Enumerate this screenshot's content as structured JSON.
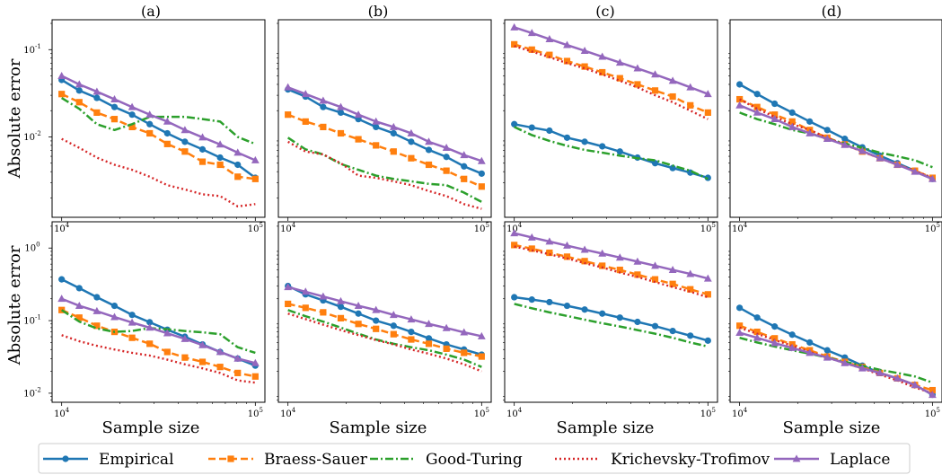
{
  "figure": {
    "panel_titles": [
      "(a)",
      "(b)",
      "(c)",
      "(d)"
    ],
    "ylabel": "Absolute error",
    "xlabel": "Sample size"
  },
  "legend": {
    "entries": [
      {
        "label": "Empirical",
        "color": "#1f77b4",
        "marker": "circle",
        "dash": "solid"
      },
      {
        "label": "Braess-Sauer",
        "color": "#ff7f0e",
        "marker": "square",
        "dash": "dashed"
      },
      {
        "label": "Good-Turing",
        "color": "#2ca02c",
        "marker": "none",
        "dash": "dashdot"
      },
      {
        "label": "Krichevsky-Trofimov",
        "color": "#d62728",
        "marker": "none",
        "dash": "dotted"
      },
      {
        "label": "Laplace",
        "color": "#9467bd",
        "marker": "triangle",
        "dash": "solid"
      }
    ],
    "placement": "bottom"
  },
  "chart_data": [
    {
      "type": "line",
      "panel": "(a)",
      "row": 1,
      "xscale": "log",
      "yscale": "log",
      "xlim": [
        10000,
        100000
      ],
      "ylim": [
        0.0012,
        0.22
      ],
      "x_ticks": [
        {
          "v": 10000,
          "b": "10",
          "e": "4"
        },
        {
          "v": 100000,
          "b": "10",
          "e": "5"
        }
      ],
      "y_ticks": [
        {
          "v": 0.01,
          "b": "10",
          "e": "-2"
        },
        {
          "v": 0.1,
          "b": "10",
          "e": "-1"
        }
      ],
      "ylabel": "Absolute error",
      "xlabel": "",
      "series": [
        {
          "name": "Empirical",
          "values": [
            0.045,
            0.034,
            0.028,
            0.022,
            0.018,
            0.014,
            0.011,
            0.0088,
            0.0072,
            0.0058,
            0.0048,
            0.0034
          ]
        },
        {
          "name": "Braess-Sauer",
          "values": [
            0.031,
            0.025,
            0.019,
            0.016,
            0.013,
            0.011,
            0.0083,
            0.0068,
            0.0052,
            0.0048,
            0.0035,
            0.0033
          ]
        },
        {
          "name": "Good-Turing",
          "values": [
            0.028,
            0.021,
            0.014,
            0.012,
            0.014,
            0.017,
            0.017,
            0.017,
            0.016,
            0.015,
            0.01,
            0.0083
          ]
        },
        {
          "name": "Krichevsky-Trofimov",
          "values": [
            0.0095,
            0.0075,
            0.0058,
            0.0048,
            0.0042,
            0.0035,
            0.0028,
            0.0025,
            0.0022,
            0.0021,
            0.0016,
            0.0017
          ]
        },
        {
          "name": "Laplace",
          "values": [
            0.05,
            0.04,
            0.033,
            0.027,
            0.022,
            0.018,
            0.015,
            0.012,
            0.0099,
            0.0082,
            0.0066,
            0.0054
          ]
        }
      ]
    },
    {
      "type": "line",
      "panel": "(b)",
      "row": 1,
      "xscale": "log",
      "yscale": "log",
      "xlim": [
        10000,
        100000
      ],
      "ylim": [
        0.0012,
        0.22
      ],
      "x_ticks": [
        {
          "v": 10000,
          "b": "10",
          "e": "4"
        },
        {
          "v": 100000,
          "b": "10",
          "e": "5"
        }
      ],
      "y_ticks": [],
      "xlabel": "",
      "series": [
        {
          "name": "Empirical",
          "values": [
            0.035,
            0.029,
            0.022,
            0.019,
            0.016,
            0.013,
            0.011,
            0.0088,
            0.0071,
            0.0059,
            0.0046,
            0.0038
          ]
        },
        {
          "name": "Braess-Sauer",
          "values": [
            0.018,
            0.015,
            0.013,
            0.011,
            0.0094,
            0.008,
            0.0068,
            0.0057,
            0.0048,
            0.0041,
            0.0033,
            0.0027
          ]
        },
        {
          "name": "Good-Turing",
          "values": [
            0.0098,
            0.0072,
            0.0063,
            0.0049,
            0.0042,
            0.0036,
            0.0033,
            0.0031,
            0.0029,
            0.0028,
            0.0023,
            0.0018
          ]
        },
        {
          "name": "Krichevsky-Trofimov",
          "values": [
            0.0088,
            0.0068,
            0.0063,
            0.005,
            0.0036,
            0.0034,
            0.0031,
            0.0028,
            0.0024,
            0.0021,
            0.0017,
            0.0015
          ]
        },
        {
          "name": "Laplace",
          "values": [
            0.037,
            0.031,
            0.026,
            0.022,
            0.018,
            0.015,
            0.013,
            0.011,
            0.0088,
            0.0075,
            0.0062,
            0.0053
          ]
        }
      ]
    },
    {
      "type": "line",
      "panel": "(c)",
      "row": 1,
      "xscale": "log",
      "yscale": "log",
      "xlim": [
        10000,
        100000
      ],
      "ylim": [
        0.0012,
        0.22
      ],
      "x_ticks": [
        {
          "v": 10000,
          "b": "10",
          "e": "4"
        },
        {
          "v": 100000,
          "b": "10",
          "e": "5"
        }
      ],
      "y_ticks": [],
      "xlabel": "",
      "series": [
        {
          "name": "Empirical",
          "values": [
            0.014,
            0.0128,
            0.0118,
            0.0098,
            0.0088,
            0.0078,
            0.0068,
            0.0058,
            0.005,
            0.0044,
            0.0039,
            0.0034
          ]
        },
        {
          "name": "Braess-Sauer",
          "values": [
            0.115,
            0.1,
            0.087,
            0.074,
            0.064,
            0.055,
            0.047,
            0.04,
            0.034,
            0.029,
            0.023,
            0.019
          ]
        },
        {
          "name": "Good-Turing",
          "values": [
            0.013,
            0.0105,
            0.009,
            0.0079,
            0.0071,
            0.0066,
            0.0061,
            0.0057,
            0.0054,
            0.0047,
            0.0041,
            0.0033
          ]
        },
        {
          "name": "Krichevsky-Trofimov",
          "values": [
            0.11,
            0.095,
            0.082,
            0.07,
            0.061,
            0.052,
            0.044,
            0.037,
            0.03,
            0.025,
            0.02,
            0.016
          ]
        },
        {
          "name": "Laplace",
          "values": [
            0.18,
            0.155,
            0.132,
            0.113,
            0.097,
            0.083,
            0.071,
            0.061,
            0.052,
            0.044,
            0.037,
            0.031
          ]
        }
      ]
    },
    {
      "type": "line",
      "panel": "(d)",
      "row": 1,
      "xscale": "log",
      "yscale": "log",
      "xlim": [
        10000,
        100000
      ],
      "ylim": [
        0.0012,
        0.22
      ],
      "x_ticks": [
        {
          "v": 10000,
          "b": "10",
          "e": "4"
        },
        {
          "v": 100000,
          "b": "10",
          "e": "5"
        }
      ],
      "y_ticks": [],
      "xlabel": "",
      "series": [
        {
          "name": "Empirical",
          "values": [
            0.04,
            0.031,
            0.024,
            0.019,
            0.015,
            0.012,
            0.0095,
            0.0076,
            0.0061,
            0.005,
            0.0041,
            0.0033
          ]
        },
        {
          "name": "Braess-Sauer",
          "values": [
            0.027,
            0.022,
            0.018,
            0.015,
            0.012,
            0.0098,
            0.0082,
            0.0068,
            0.0057,
            0.0048,
            0.0041,
            0.0034
          ]
        },
        {
          "name": "Good-Turing",
          "values": [
            0.019,
            0.016,
            0.014,
            0.012,
            0.011,
            0.0095,
            0.0084,
            0.0075,
            0.0066,
            0.006,
            0.0054,
            0.0045
          ]
        },
        {
          "name": "Krichevsky-Trofimov",
          "values": [
            0.027,
            0.021,
            0.017,
            0.014,
            0.012,
            0.0098,
            0.0081,
            0.0068,
            0.0057,
            0.0048,
            0.0041,
            0.0034
          ]
        },
        {
          "name": "Laplace",
          "values": [
            0.023,
            0.019,
            0.016,
            0.013,
            0.011,
            0.0095,
            0.0081,
            0.0069,
            0.0057,
            0.0048,
            0.004,
            0.0033
          ]
        }
      ]
    },
    {
      "type": "line",
      "panel": "(a)",
      "row": 2,
      "xscale": "log",
      "yscale": "log",
      "xlim": [
        10000,
        100000
      ],
      "ylim": [
        0.0075,
        2.3
      ],
      "x_ticks": [
        {
          "v": 10000,
          "b": "10",
          "e": "4"
        },
        {
          "v": 100000,
          "b": "10",
          "e": "5"
        }
      ],
      "y_ticks": [
        {
          "v": 0.01,
          "b": "10",
          "e": "-2"
        },
        {
          "v": 0.1,
          "b": "10",
          "e": "-1"
        },
        {
          "v": 1,
          "b": "10",
          "e": "0"
        }
      ],
      "ylabel": "Absolute error",
      "xlabel": "Sample size",
      "series": [
        {
          "name": "Empirical",
          "values": [
            0.37,
            0.28,
            0.21,
            0.16,
            0.12,
            0.095,
            0.075,
            0.06,
            0.047,
            0.037,
            0.03,
            0.024
          ]
        },
        {
          "name": "Braess-Sauer",
          "values": [
            0.14,
            0.11,
            0.085,
            0.07,
            0.058,
            0.048,
            0.037,
            0.031,
            0.027,
            0.023,
            0.019,
            0.017
          ]
        },
        {
          "name": "Good-Turing",
          "values": [
            0.14,
            0.097,
            0.078,
            0.07,
            0.072,
            0.079,
            0.076,
            0.072,
            0.069,
            0.065,
            0.043,
            0.036
          ]
        },
        {
          "name": "Krichevsky-Trofimov",
          "values": [
            0.063,
            0.052,
            0.045,
            0.04,
            0.036,
            0.033,
            0.029,
            0.025,
            0.022,
            0.019,
            0.015,
            0.014
          ]
        },
        {
          "name": "Laplace",
          "values": [
            0.2,
            0.16,
            0.135,
            0.112,
            0.094,
            0.08,
            0.067,
            0.056,
            0.046,
            0.037,
            0.03,
            0.026
          ]
        }
      ]
    },
    {
      "type": "line",
      "panel": "(b)",
      "row": 2,
      "xscale": "log",
      "yscale": "log",
      "xlim": [
        10000,
        100000
      ],
      "ylim": [
        0.0075,
        2.3
      ],
      "x_ticks": [
        {
          "v": 10000,
          "b": "10",
          "e": "4"
        },
        {
          "v": 100000,
          "b": "10",
          "e": "5"
        }
      ],
      "y_ticks": [],
      "xlabel": "Sample size",
      "series": [
        {
          "name": "Empirical",
          "values": [
            0.3,
            0.23,
            0.19,
            0.155,
            0.125,
            0.1,
            0.085,
            0.07,
            0.057,
            0.047,
            0.04,
            0.034
          ]
        },
        {
          "name": "Braess-Sauer",
          "values": [
            0.17,
            0.15,
            0.13,
            0.108,
            0.09,
            0.077,
            0.065,
            0.055,
            0.048,
            0.041,
            0.036,
            0.032
          ]
        },
        {
          "name": "Good-Turing",
          "values": [
            0.14,
            0.115,
            0.097,
            0.08,
            0.066,
            0.055,
            0.048,
            0.043,
            0.039,
            0.034,
            0.029,
            0.023
          ]
        },
        {
          "name": "Krichevsky-Trofimov",
          "values": [
            0.125,
            0.105,
            0.088,
            0.074,
            0.063,
            0.054,
            0.047,
            0.04,
            0.035,
            0.03,
            0.025,
            0.02
          ]
        },
        {
          "name": "Laplace",
          "values": [
            0.29,
            0.25,
            0.215,
            0.185,
            0.16,
            0.14,
            0.12,
            0.104,
            0.09,
            0.079,
            0.069,
            0.061
          ]
        }
      ]
    },
    {
      "type": "line",
      "panel": "(c)",
      "row": 2,
      "xscale": "log",
      "yscale": "log",
      "xlim": [
        10000,
        100000
      ],
      "ylim": [
        0.0075,
        2.3
      ],
      "x_ticks": [
        {
          "v": 10000,
          "b": "10",
          "e": "4"
        },
        {
          "v": 100000,
          "b": "10",
          "e": "5"
        }
      ],
      "y_ticks": [],
      "xlabel": "Sample size",
      "series": [
        {
          "name": "Empirical",
          "values": [
            0.21,
            0.195,
            0.18,
            0.16,
            0.142,
            0.125,
            0.11,
            0.096,
            0.084,
            0.072,
            0.062,
            0.053
          ]
        },
        {
          "name": "Braess-Sauer",
          "values": [
            1.1,
            0.98,
            0.86,
            0.76,
            0.66,
            0.57,
            0.5,
            0.43,
            0.37,
            0.32,
            0.27,
            0.23
          ]
        },
        {
          "name": "Good-Turing",
          "values": [
            0.17,
            0.148,
            0.13,
            0.116,
            0.103,
            0.092,
            0.083,
            0.074,
            0.066,
            0.058,
            0.05,
            0.044
          ]
        },
        {
          "name": "Krichevsky-Trofimov",
          "values": [
            1.05,
            0.93,
            0.82,
            0.72,
            0.62,
            0.54,
            0.46,
            0.4,
            0.34,
            0.29,
            0.25,
            0.21
          ]
        },
        {
          "name": "Laplace",
          "values": [
            1.6,
            1.4,
            1.23,
            1.08,
            0.95,
            0.84,
            0.74,
            0.65,
            0.57,
            0.5,
            0.44,
            0.38
          ]
        }
      ]
    },
    {
      "type": "line",
      "panel": "(d)",
      "row": 2,
      "xscale": "log",
      "yscale": "log",
      "xlim": [
        10000,
        100000
      ],
      "ylim": [
        0.0075,
        2.3
      ],
      "x_ticks": [
        {
          "v": 10000,
          "b": "10",
          "e": "4"
        },
        {
          "v": 100000,
          "b": "10",
          "e": "5"
        }
      ],
      "y_ticks": [],
      "xlabel": "Sample size",
      "series": [
        {
          "name": "Empirical",
          "values": [
            0.15,
            0.11,
            0.083,
            0.064,
            0.05,
            0.039,
            0.031,
            0.024,
            0.019,
            0.016,
            0.013,
            0.0095
          ]
        },
        {
          "name": "Braess-Sauer",
          "values": [
            0.085,
            0.07,
            0.057,
            0.047,
            0.039,
            0.032,
            0.027,
            0.023,
            0.019,
            0.016,
            0.013,
            0.011
          ]
        },
        {
          "name": "Good-Turing",
          "values": [
            0.058,
            0.05,
            0.044,
            0.039,
            0.035,
            0.031,
            0.027,
            0.024,
            0.021,
            0.019,
            0.017,
            0.014
          ]
        },
        {
          "name": "Krichevsky-Trofimov",
          "values": [
            0.08,
            0.066,
            0.054,
            0.045,
            0.037,
            0.031,
            0.026,
            0.022,
            0.018,
            0.015,
            0.012,
            0.01
          ]
        },
        {
          "name": "Laplace",
          "values": [
            0.068,
            0.058,
            0.049,
            0.042,
            0.036,
            0.031,
            0.026,
            0.022,
            0.019,
            0.016,
            0.013,
            0.0095
          ]
        }
      ]
    }
  ]
}
